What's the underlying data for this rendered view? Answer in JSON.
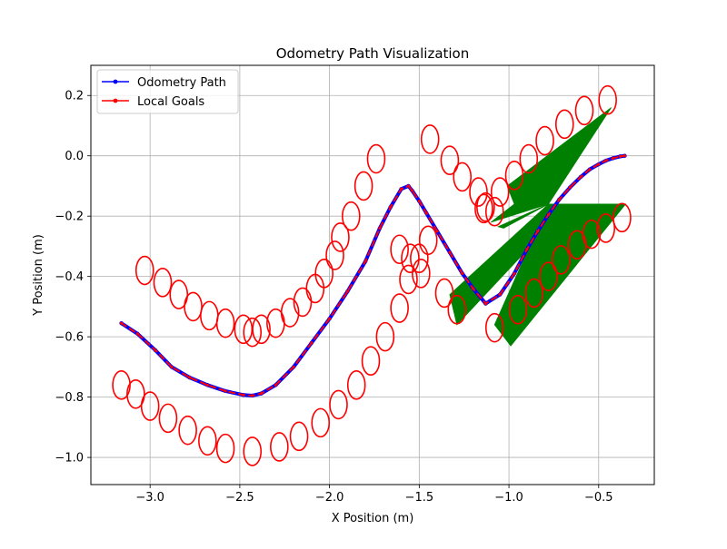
{
  "chart_data": {
    "type": "line",
    "title": "Odometry Path Visualization",
    "xlabel": "X Position (m)",
    "ylabel": "Y Position (m)",
    "xlim": [
      -3.33,
      -0.19
    ],
    "ylim": [
      -1.09,
      0.3
    ],
    "xticks": [
      -3.0,
      -2.5,
      -2.0,
      -1.5,
      -1.0,
      -0.5
    ],
    "xtick_labels": [
      "−3.0",
      "−2.5",
      "−2.0",
      "−1.5",
      "−1.0",
      "−0.5"
    ],
    "yticks": [
      0.2,
      0.0,
      -0.2,
      -0.4,
      -0.6,
      -0.8,
      -1.0
    ],
    "ytick_labels": [
      "0.2",
      "0.0",
      "−0.2",
      "−0.4",
      "−0.6",
      "−0.8",
      "−1.0"
    ],
    "grid": true,
    "legend_position": "top-left",
    "colors": {
      "path": "#0000ff",
      "goals": "#ff0000",
      "ellipse": "#ff0000",
      "fill": "#008000",
      "grid": "#b0b0b0"
    },
    "series": [
      {
        "name": "Odometry Path",
        "color": "#0000ff",
        "x": [
          -3.16,
          -3.07,
          -2.97,
          -2.88,
          -2.78,
          -2.68,
          -2.58,
          -2.48,
          -2.43,
          -2.38,
          -2.3,
          -2.2,
          -2.1,
          -2.0,
          -1.9,
          -1.8,
          -1.72,
          -1.66,
          -1.6,
          -1.56,
          -1.54,
          -1.5,
          -1.46,
          -1.4,
          -1.33,
          -1.26,
          -1.2,
          -1.13,
          -1.05,
          -0.97,
          -0.9,
          -0.84,
          -0.78,
          -0.72,
          -0.66,
          -0.6,
          -0.55,
          -0.5,
          -0.46,
          -0.42,
          -0.38,
          -0.355
        ],
        "y": [
          -0.555,
          -0.59,
          -0.645,
          -0.7,
          -0.735,
          -0.76,
          -0.78,
          -0.793,
          -0.795,
          -0.788,
          -0.76,
          -0.7,
          -0.62,
          -0.54,
          -0.45,
          -0.35,
          -0.24,
          -0.17,
          -0.11,
          -0.1,
          -0.115,
          -0.15,
          -0.19,
          -0.25,
          -0.32,
          -0.39,
          -0.44,
          -0.49,
          -0.46,
          -0.39,
          -0.31,
          -0.25,
          -0.195,
          -0.145,
          -0.105,
          -0.07,
          -0.045,
          -0.028,
          -0.016,
          -0.008,
          -0.002,
          0.0
        ]
      },
      {
        "name": "Local Goals",
        "color": "#ff0000",
        "x": [
          -3.16,
          -3.07,
          -2.97,
          -2.88,
          -2.78,
          -2.68,
          -2.58,
          -2.48,
          -2.43,
          -2.38,
          -2.3,
          -2.2,
          -2.1,
          -2.0,
          -1.9,
          -1.8,
          -1.72,
          -1.66,
          -1.6,
          -1.56,
          -1.54,
          -1.5,
          -1.46,
          -1.4,
          -1.33,
          -1.26,
          -1.2,
          -1.13,
          -1.05,
          -0.97,
          -0.9,
          -0.84,
          -0.78,
          -0.72,
          -0.66,
          -0.6,
          -0.55,
          -0.5,
          -0.46,
          -0.42,
          -0.38,
          -0.355
        ],
        "y": [
          -0.555,
          -0.59,
          -0.645,
          -0.7,
          -0.735,
          -0.76,
          -0.78,
          -0.793,
          -0.795,
          -0.788,
          -0.76,
          -0.7,
          -0.62,
          -0.54,
          -0.45,
          -0.35,
          -0.24,
          -0.17,
          -0.11,
          -0.1,
          -0.115,
          -0.15,
          -0.19,
          -0.25,
          -0.32,
          -0.39,
          -0.44,
          -0.49,
          -0.46,
          -0.39,
          -0.31,
          -0.25,
          -0.195,
          -0.145,
          -0.105,
          -0.07,
          -0.045,
          -0.028,
          -0.016,
          -0.008,
          -0.002,
          0.0
        ]
      }
    ],
    "ellipses_upper": [
      {
        "x": -3.03,
        "y": -0.38
      },
      {
        "x": -2.93,
        "y": -0.42
      },
      {
        "x": -2.84,
        "y": -0.46
      },
      {
        "x": -2.76,
        "y": -0.5
      },
      {
        "x": -2.67,
        "y": -0.53
      },
      {
        "x": -2.58,
        "y": -0.555
      },
      {
        "x": -2.48,
        "y": -0.575
      },
      {
        "x": -2.43,
        "y": -0.585
      },
      {
        "x": -2.38,
        "y": -0.575
      },
      {
        "x": -2.3,
        "y": -0.555
      },
      {
        "x": -2.22,
        "y": -0.52
      },
      {
        "x": -2.15,
        "y": -0.485
      },
      {
        "x": -2.08,
        "y": -0.44
      },
      {
        "x": -2.03,
        "y": -0.39
      },
      {
        "x": -1.97,
        "y": -0.33
      },
      {
        "x": -1.94,
        "y": -0.27
      },
      {
        "x": -1.88,
        "y": -0.2
      },
      {
        "x": -1.81,
        "y": -0.1
      },
      {
        "x": -1.74,
        "y": -0.01
      },
      {
        "x": -1.61,
        "y": -0.31
      },
      {
        "x": -1.55,
        "y": -0.34
      },
      {
        "x": -1.5,
        "y": -0.34
      },
      {
        "x": -1.45,
        "y": -0.28
      },
      {
        "x": -1.44,
        "y": 0.055
      },
      {
        "x": -1.33,
        "y": -0.015
      },
      {
        "x": -1.26,
        "y": -0.07
      },
      {
        "x": -1.17,
        "y": -0.12
      },
      {
        "x": -1.13,
        "y": -0.17
      },
      {
        "x": -1.05,
        "y": -0.12
      },
      {
        "x": -0.97,
        "y": -0.065
      },
      {
        "x": -0.89,
        "y": -0.01
      },
      {
        "x": -0.8,
        "y": 0.05
      },
      {
        "x": -0.69,
        "y": 0.105
      },
      {
        "x": -0.58,
        "y": 0.15
      },
      {
        "x": -0.45,
        "y": 0.185
      }
    ],
    "ellipses_lower": [
      {
        "x": -3.16,
        "y": -0.76
      },
      {
        "x": -3.08,
        "y": -0.79
      },
      {
        "x": -3.0,
        "y": -0.83
      },
      {
        "x": -2.9,
        "y": -0.87
      },
      {
        "x": -2.79,
        "y": -0.91
      },
      {
        "x": -2.68,
        "y": -0.945
      },
      {
        "x": -2.58,
        "y": -0.97
      },
      {
        "x": -2.43,
        "y": -0.98
      },
      {
        "x": -2.28,
        "y": -0.965
      },
      {
        "x": -2.17,
        "y": -0.93
      },
      {
        "x": -2.05,
        "y": -0.885
      },
      {
        "x": -1.95,
        "y": -0.825
      },
      {
        "x": -1.85,
        "y": -0.76
      },
      {
        "x": -1.77,
        "y": -0.68
      },
      {
        "x": -1.69,
        "y": -0.6
      },
      {
        "x": -1.61,
        "y": -0.505
      },
      {
        "x": -1.56,
        "y": -0.41
      },
      {
        "x": -1.49,
        "y": -0.39
      },
      {
        "x": -1.36,
        "y": -0.455
      },
      {
        "x": -1.29,
        "y": -0.51
      },
      {
        "x": -1.14,
        "y": -0.175
      },
      {
        "x": -1.08,
        "y": -0.185
      },
      {
        "x": -1.08,
        "y": -0.57
      },
      {
        "x": -0.95,
        "y": -0.51
      },
      {
        "x": -0.86,
        "y": -0.455
      },
      {
        "x": -0.78,
        "y": -0.4
      },
      {
        "x": -0.71,
        "y": -0.345
      },
      {
        "x": -0.62,
        "y": -0.295
      },
      {
        "x": -0.54,
        "y": -0.26
      },
      {
        "x": -0.46,
        "y": -0.24
      },
      {
        "x": -0.37,
        "y": -0.205
      }
    ],
    "fill_polygons": [
      [
        [
          -0.78,
          -0.16
        ],
        [
          -1.1,
          -0.22
        ],
        [
          -0.97,
          -0.16
        ],
        [
          -1.01,
          -0.1
        ],
        [
          -0.43,
          0.16
        ]
      ],
      [
        [
          -0.78,
          -0.16
        ],
        [
          -1.33,
          -0.46
        ],
        [
          -1.29,
          -0.56
        ],
        [
          -0.66,
          -0.16
        ]
      ],
      [
        [
          -0.78,
          -0.16
        ],
        [
          -1.08,
          -0.56
        ],
        [
          -0.99,
          -0.63
        ],
        [
          -0.35,
          -0.16
        ],
        [
          -0.66,
          -0.16
        ]
      ],
      [
        [
          -0.78,
          -0.16
        ],
        [
          -1.06,
          -0.235
        ],
        [
          -1.03,
          -0.24
        ]
      ]
    ]
  }
}
